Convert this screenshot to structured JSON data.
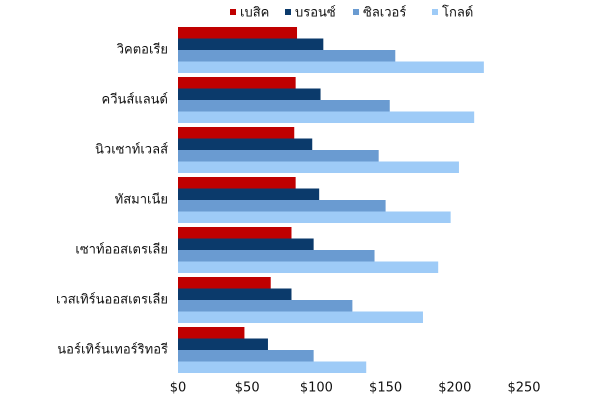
{
  "chart_data": {
    "type": "hbar",
    "categories": [
      "วิคตอเรีย",
      "ควีนส์แลนด์",
      "นิวเซาท์เวลส์",
      "ทัสมาเนีย",
      "เซาท์ออสเตรเลีย",
      "เวสเทิร์นออสเตรเลีย",
      "นอร์เทิร์นเทอร์ริทอรี"
    ],
    "series": [
      {
        "name": "เบสิค",
        "color": "#c00000",
        "values": [
          86,
          85,
          84,
          85,
          82,
          67,
          48
        ]
      },
      {
        "name": "บรอนซ์",
        "color": "#0b3a6b",
        "values": [
          105,
          103,
          97,
          102,
          98,
          82,
          65
        ]
      },
      {
        "name": "ซิลเวอร์",
        "color": "#6a9bd1",
        "values": [
          157,
          153,
          145,
          150,
          142,
          126,
          98
        ]
      },
      {
        "name": "โกลด์",
        "color": "#9ecbf7",
        "values": [
          221,
          214,
          203,
          197,
          188,
          177,
          136
        ]
      }
    ],
    "xlim": [
      0,
      250
    ],
    "xticks": [
      {
        "value": 0,
        "label": "$0"
      },
      {
        "value": 50,
        "label": "$50"
      },
      {
        "value": 100,
        "label": "$100"
      },
      {
        "value": 150,
        "label": "$150"
      },
      {
        "value": 200,
        "label": "$200"
      },
      {
        "value": 250,
        "label": "$250"
      }
    ],
    "legend": "top"
  }
}
